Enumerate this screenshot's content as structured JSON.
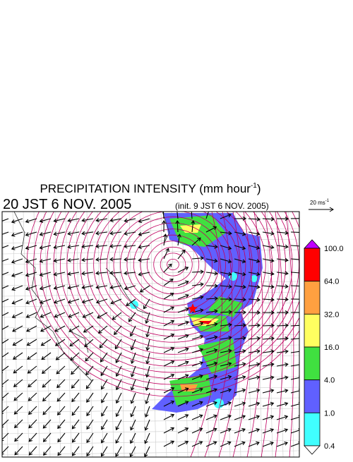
{
  "header": {
    "title": "PRECIPITATION INTENSITY (mm hour",
    "title_exponent": "-1",
    "title_close": ")",
    "time": "20 JST 6 NOV. 2005",
    "init": "(init. 9 JST 6 NOV. 2005)"
  },
  "vector_scale": {
    "label": "20 ms",
    "exponent": "-1"
  },
  "colorbar": {
    "levels": [
      {
        "label": "100.0",
        "color": "#ff0000"
      },
      {
        "label": "64.0",
        "color": "#ffa040"
      },
      {
        "label": "32.0",
        "color": "#ffff60"
      },
      {
        "label": "16.0",
        "color": "#40e040"
      },
      {
        "label": "4.0",
        "color": "#6060ff"
      },
      {
        "label": "1.0",
        "color": "#40ffff"
      },
      {
        "label": "0.4",
        "color": "#ffffff"
      }
    ],
    "over_color": "#c000ff"
  }
}
